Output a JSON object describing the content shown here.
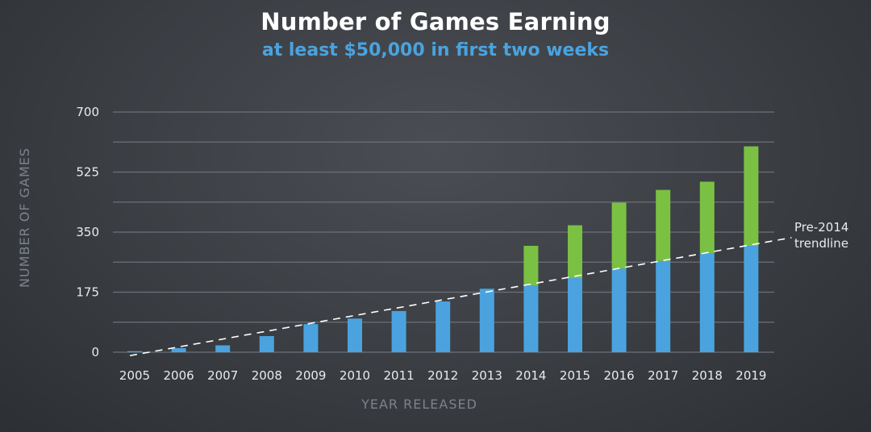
{
  "chart_data": {
    "type": "bar",
    "stacked": true,
    "title": "Number of Games Earning",
    "subtitle": "at least $50,000 in first two weeks",
    "xlabel": "YEAR RELEASED",
    "ylabel": "NUMBER OF GAMES",
    "categories": [
      "2005",
      "2006",
      "2007",
      "2008",
      "2009",
      "2010",
      "2011",
      "2012",
      "2013",
      "2014",
      "2015",
      "2016",
      "2017",
      "2018",
      "2019"
    ],
    "series": [
      {
        "color": "#4aa3df",
        "values": [
          3,
          12,
          20,
          47,
          82,
          98,
          120,
          148,
          185,
          194,
          216,
          244,
          266,
          287,
          310
        ]
      },
      {
        "color": "#7ac143",
        "values": [
          0,
          0,
          0,
          0,
          0,
          0,
          0,
          0,
          0,
          116,
          154,
          192,
          207,
          210,
          290
        ]
      }
    ],
    "yticks": [
      0,
      175,
      350,
      525,
      700
    ],
    "ylim": [
      0,
      700
    ],
    "grid": true,
    "trendline": {
      "label_line1": "Pre-2014",
      "label_line2": "trendline",
      "from": {
        "x": 2005,
        "y": -10
      },
      "to": {
        "x": 2019,
        "y": 306
      }
    },
    "colors": {
      "pre_2014": "#4aa3df",
      "above_trend": "#7ac143",
      "trendline": "#ffffff"
    }
  }
}
